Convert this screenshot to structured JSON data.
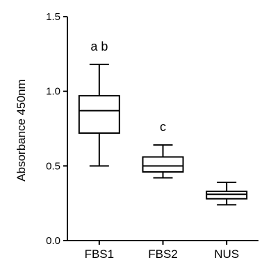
{
  "chart_data": {
    "type": "box",
    "title": "",
    "xlabel": "",
    "ylabel": "Absorbance 450nm",
    "ylim": [
      0,
      1.5
    ],
    "yticks": [
      0.0,
      0.5,
      1.0,
      1.5
    ],
    "ytick_labels": [
      "0.0",
      "0.5",
      "1.0",
      "1.5"
    ],
    "categories": [
      "FBS1",
      "FBS2",
      "NUS"
    ],
    "boxes": [
      {
        "category": "FBS1",
        "min": 0.5,
        "q1": 0.72,
        "median": 0.87,
        "q3": 0.97,
        "max": 1.18,
        "annotation": "a b"
      },
      {
        "category": "FBS2",
        "min": 0.42,
        "q1": 0.46,
        "median": 0.5,
        "q3": 0.56,
        "max": 0.64,
        "annotation": "c"
      },
      {
        "category": "NUS",
        "min": 0.24,
        "q1": 0.28,
        "median": 0.31,
        "q3": 0.33,
        "max": 0.39,
        "annotation": ""
      }
    ],
    "grid": false,
    "legend": "none"
  }
}
